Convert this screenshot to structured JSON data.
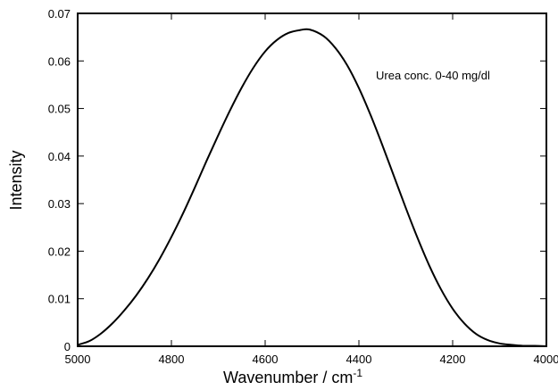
{
  "chart_data": {
    "type": "line",
    "title": "",
    "xlabel": "Wavenumber / cm",
    "xlabel_superscript": "-1",
    "ylabel": "Intensity",
    "xlim": [
      5000,
      4000
    ],
    "x_reversed": true,
    "ylim": [
      0,
      0.07
    ],
    "xticks": [
      5000,
      4800,
      4600,
      4400,
      4200,
      4000
    ],
    "xtick_labels": [
      "5000",
      "4800",
      "4600",
      "4400",
      "4200",
      "4000"
    ],
    "yticks": [
      0,
      0.01,
      0.02,
      0.03,
      0.04,
      0.05,
      0.06,
      0.07
    ],
    "ytick_labels": [
      "0",
      "0.01",
      "0.02",
      "0.03",
      "0.04",
      "0.05",
      "0.06",
      "0.07"
    ],
    "grid": false,
    "annotation": "Urea conc. 0-40 mg/dl",
    "line_color": "#000000",
    "series": [
      {
        "x": [
          5000,
          4975,
          4950,
          4925,
          4900,
          4875,
          4850,
          4825,
          4800,
          4775,
          4750,
          4725,
          4700,
          4675,
          4650,
          4625,
          4600,
          4575,
          4550,
          4525,
          4505,
          4475,
          4450,
          4425,
          4400,
          4375,
          4350,
          4325,
          4300,
          4275,
          4250,
          4225,
          4200,
          4175,
          4150,
          4125,
          4100,
          4075,
          4050,
          4025,
          4000
        ],
        "y": [
          0.0003,
          0.0011,
          0.0027,
          0.0049,
          0.0076,
          0.0107,
          0.0143,
          0.0184,
          0.023,
          0.028,
          0.0334,
          0.039,
          0.0444,
          0.0496,
          0.0544,
          0.0586,
          0.062,
          0.0644,
          0.0659,
          0.0665,
          0.0666,
          0.0652,
          0.0627,
          0.0591,
          0.0543,
          0.0486,
          0.0423,
          0.0357,
          0.0291,
          0.0228,
          0.017,
          0.012,
          0.0079,
          0.0048,
          0.0026,
          0.0013,
          0.0006,
          0.0003,
          0.0001,
          0.0001,
          0.0
        ]
      }
    ]
  }
}
